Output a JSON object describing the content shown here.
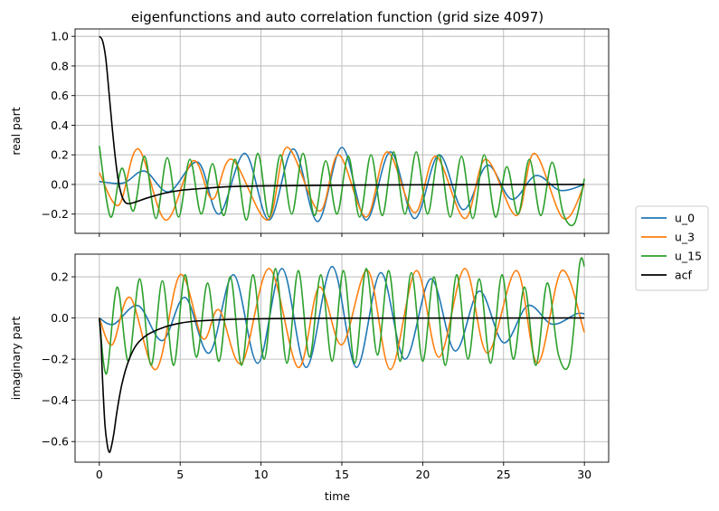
{
  "chart_data": {
    "type": "line",
    "title": "eigenfunctions and auto correlation function (grid size 4097)",
    "xlabel": "time",
    "grid": true,
    "legend_placement": "right",
    "x_ticks": [
      "0",
      "5",
      "10",
      "15",
      "20",
      "25",
      "30"
    ],
    "xlim": [
      -1.5,
      31.5
    ],
    "legend": [
      {
        "name": "u_0",
        "color": "#1f77b4"
      },
      {
        "name": "u_3",
        "color": "#ff7f0e"
      },
      {
        "name": "u_15",
        "color": "#2ca02c"
      },
      {
        "name": "acf",
        "color": "#000000"
      }
    ],
    "panels": [
      {
        "ylabel": "real part",
        "ylim": [
          -0.33,
          1.05
        ],
        "y_ticks": [
          "1.0",
          "0.8",
          "0.6",
          "0.4",
          "0.2",
          "0.0",
          "−0.2"
        ],
        "y_tick_values": [
          1.0,
          0.8,
          0.6,
          0.4,
          0.2,
          0.0,
          -0.2
        ],
        "series": [
          {
            "name": "u_0",
            "color": "#1f77b4",
            "amplitude": 0.245,
            "period": 3.04,
            "note_x": [
              0,
              30
            ],
            "points": [
              [
                0,
                0.02
              ],
              [
                1.5,
                0.01
              ],
              [
                2.8,
                0.09
              ],
              [
                4.3,
                -0.05
              ],
              [
                6.1,
                0.15
              ],
              [
                7.4,
                -0.2
              ],
              [
                9.0,
                0.21
              ],
              [
                10.5,
                -0.24
              ],
              [
                12.0,
                0.24
              ],
              [
                13.5,
                -0.25
              ],
              [
                15.0,
                0.25
              ],
              [
                16.5,
                -0.24
              ],
              [
                18.0,
                0.22
              ],
              [
                19.5,
                -0.23
              ],
              [
                21.0,
                0.2
              ],
              [
                22.5,
                -0.17
              ],
              [
                24.0,
                0.13
              ],
              [
                25.5,
                -0.1
              ],
              [
                27.0,
                0.06
              ],
              [
                28.5,
                -0.04
              ],
              [
                30.0,
                0.0
              ]
            ]
          },
          {
            "name": "u_3",
            "color": "#ff7f0e",
            "points": [
              [
                0,
                0.08
              ],
              [
                1.2,
                -0.14
              ],
              [
                2.4,
                0.24
              ],
              [
                4.1,
                -0.24
              ],
              [
                5.8,
                0.16
              ],
              [
                7.0,
                -0.1
              ],
              [
                8.2,
                0.17
              ],
              [
                10.4,
                -0.24
              ],
              [
                11.6,
                0.25
              ],
              [
                13.6,
                -0.18
              ],
              [
                14.8,
                0.2
              ],
              [
                16.5,
                -0.22
              ],
              [
                17.8,
                0.22
              ],
              [
                19.5,
                -0.19
              ],
              [
                20.8,
                0.19
              ],
              [
                22.6,
                -0.23
              ],
              [
                23.9,
                0.17
              ],
              [
                25.8,
                -0.21
              ],
              [
                26.9,
                0.21
              ],
              [
                28.7,
                -0.23
              ],
              [
                30.0,
                0.0
              ]
            ]
          },
          {
            "name": "u_15",
            "color": "#2ca02c",
            "points": [
              [
                0,
                0.26
              ],
              [
                0.7,
                -0.22
              ],
              [
                1.4,
                0.11
              ],
              [
                2.1,
                -0.18
              ],
              [
                2.8,
                0.19
              ],
              [
                3.5,
                -0.23
              ],
              [
                4.2,
                0.18
              ],
              [
                4.9,
                -0.22
              ],
              [
                5.6,
                0.17
              ],
              [
                6.3,
                -0.2
              ],
              [
                7.0,
                0.14
              ],
              [
                7.7,
                -0.21
              ],
              [
                8.4,
                0.17
              ],
              [
                9.1,
                -0.24
              ],
              [
                9.8,
                0.21
              ],
              [
                10.5,
                -0.22
              ],
              [
                11.2,
                0.2
              ],
              [
                11.9,
                -0.2
              ],
              [
                12.6,
                0.21
              ],
              [
                13.3,
                -0.21
              ],
              [
                14.0,
                0.16
              ],
              [
                14.7,
                -0.2
              ],
              [
                15.4,
                0.19
              ],
              [
                16.1,
                -0.22
              ],
              [
                16.8,
                0.2
              ],
              [
                17.5,
                -0.21
              ],
              [
                18.2,
                0.22
              ],
              [
                18.9,
                -0.2
              ],
              [
                19.6,
                0.22
              ],
              [
                20.3,
                -0.2
              ],
              [
                21.0,
                0.2
              ],
              [
                21.7,
                -0.22
              ],
              [
                22.4,
                0.19
              ],
              [
                23.1,
                -0.23
              ],
              [
                23.8,
                0.2
              ],
              [
                24.5,
                -0.22
              ],
              [
                25.2,
                0.12
              ],
              [
                25.9,
                -0.2
              ],
              [
                26.6,
                0.17
              ],
              [
                27.3,
                -0.21
              ],
              [
                28.0,
                0.15
              ],
              [
                28.7,
                -0.2
              ],
              [
                29.4,
                -0.26
              ],
              [
                30.0,
                0.04
              ]
            ]
          },
          {
            "name": "acf",
            "color": "#000000",
            "points": [
              [
                0,
                1.0
              ],
              [
                0.2,
                0.97
              ],
              [
                0.4,
                0.85
              ],
              [
                0.6,
                0.62
              ],
              [
                0.8,
                0.38
              ],
              [
                1.0,
                0.17
              ],
              [
                1.2,
                0.01
              ],
              [
                1.4,
                -0.08
              ],
              [
                1.6,
                -0.12
              ],
              [
                1.8,
                -0.13
              ],
              [
                2.2,
                -0.12
              ],
              [
                3.0,
                -0.09
              ],
              [
                4.0,
                -0.06
              ],
              [
                5.0,
                -0.04
              ],
              [
                6.0,
                -0.03
              ],
              [
                8.0,
                -0.015
              ],
              [
                10.0,
                -0.01
              ],
              [
                15.0,
                -0.005
              ],
              [
                20.0,
                -0.002
              ],
              [
                30.0,
                0.0
              ]
            ]
          }
        ]
      },
      {
        "ylabel": "imaginary part",
        "ylim": [
          -0.7,
          0.31
        ],
        "y_ticks": [
          "0.2",
          "0.0",
          "−0.2",
          "−0.4",
          "−0.6"
        ],
        "y_tick_values": [
          0.2,
          0.0,
          -0.2,
          -0.4,
          -0.6
        ],
        "series": [
          {
            "name": "u_0",
            "color": "#1f77b4",
            "points": [
              [
                0,
                0.0
              ],
              [
                0.9,
                -0.03
              ],
              [
                2.4,
                0.06
              ],
              [
                3.9,
                -0.11
              ],
              [
                5.3,
                0.1
              ],
              [
                6.8,
                -0.17
              ],
              [
                8.3,
                0.21
              ],
              [
                9.8,
                -0.22
              ],
              [
                11.3,
                0.24
              ],
              [
                12.8,
                -0.24
              ],
              [
                14.4,
                0.25
              ],
              [
                15.9,
                -0.24
              ],
              [
                17.4,
                0.22
              ],
              [
                18.9,
                -0.2
              ],
              [
                20.5,
                0.19
              ],
              [
                22.0,
                -0.16
              ],
              [
                23.5,
                0.13
              ],
              [
                25.0,
                -0.12
              ],
              [
                26.5,
                0.06
              ],
              [
                28.0,
                -0.03
              ],
              [
                29.5,
                0.02
              ],
              [
                30.0,
                0.02
              ]
            ]
          },
          {
            "name": "u_3",
            "color": "#ff7f0e",
            "points": [
              [
                0,
                0.0
              ],
              [
                0.8,
                -0.13
              ],
              [
                1.9,
                0.1
              ],
              [
                3.5,
                -0.25
              ],
              [
                5.0,
                0.21
              ],
              [
                6.4,
                -0.1
              ],
              [
                7.4,
                0.04
              ],
              [
                8.8,
                -0.22
              ],
              [
                10.5,
                0.24
              ],
              [
                12.3,
                -0.24
              ],
              [
                13.6,
                0.15
              ],
              [
                15.0,
                -0.13
              ],
              [
                16.6,
                0.23
              ],
              [
                18.0,
                -0.25
              ],
              [
                19.6,
                0.23
              ],
              [
                21.0,
                -0.19
              ],
              [
                22.6,
                0.24
              ],
              [
                24.0,
                -0.17
              ],
              [
                25.8,
                0.23
              ],
              [
                27.1,
                -0.22
              ],
              [
                28.6,
                0.23
              ],
              [
                30.0,
                -0.07
              ]
            ]
          },
          {
            "name": "u_15",
            "color": "#2ca02c",
            "points": [
              [
                0,
                0.0
              ],
              [
                0.45,
                -0.27
              ],
              [
                1.1,
                0.15
              ],
              [
                1.8,
                -0.21
              ],
              [
                2.5,
                0.19
              ],
              [
                3.2,
                -0.23
              ],
              [
                3.9,
                0.18
              ],
              [
                4.6,
                -0.23
              ],
              [
                5.3,
                0.21
              ],
              [
                6.0,
                -0.19
              ],
              [
                6.7,
                0.17
              ],
              [
                7.4,
                -0.21
              ],
              [
                8.1,
                0.2
              ],
              [
                8.8,
                -0.23
              ],
              [
                9.5,
                0.21
              ],
              [
                10.2,
                -0.2
              ],
              [
                10.9,
                0.24
              ],
              [
                11.6,
                -0.22
              ],
              [
                12.3,
                0.23
              ],
              [
                13.0,
                -0.19
              ],
              [
                13.7,
                0.21
              ],
              [
                14.4,
                -0.21
              ],
              [
                15.1,
                0.23
              ],
              [
                15.8,
                -0.22
              ],
              [
                16.5,
                0.24
              ],
              [
                17.2,
                -0.18
              ],
              [
                17.9,
                0.23
              ],
              [
                18.6,
                -0.21
              ],
              [
                19.3,
                0.22
              ],
              [
                20.0,
                -0.21
              ],
              [
                20.7,
                0.2
              ],
              [
                21.4,
                -0.23
              ],
              [
                22.1,
                0.21
              ],
              [
                22.8,
                -0.2
              ],
              [
                23.5,
                0.19
              ],
              [
                24.2,
                -0.22
              ],
              [
                24.9,
                0.21
              ],
              [
                25.6,
                -0.2
              ],
              [
                26.3,
                0.15
              ],
              [
                27.0,
                -0.23
              ],
              [
                27.7,
                0.17
              ],
              [
                28.4,
                -0.18
              ],
              [
                29.1,
                -0.21
              ],
              [
                29.7,
                0.26
              ],
              [
                30.0,
                0.25
              ]
            ]
          },
          {
            "name": "acf",
            "color": "#000000",
            "points": [
              [
                0,
                0.0
              ],
              [
                0.1,
                -0.1
              ],
              [
                0.2,
                -0.3
              ],
              [
                0.35,
                -0.52
              ],
              [
                0.5,
                -0.62
              ],
              [
                0.6,
                -0.65
              ],
              [
                0.7,
                -0.64
              ],
              [
                0.9,
                -0.56
              ],
              [
                1.1,
                -0.45
              ],
              [
                1.4,
                -0.32
              ],
              [
                1.8,
                -0.21
              ],
              [
                2.3,
                -0.13
              ],
              [
                3.0,
                -0.08
              ],
              [
                4.0,
                -0.045
              ],
              [
                5.0,
                -0.025
              ],
              [
                6.0,
                -0.015
              ],
              [
                8.0,
                -0.007
              ],
              [
                10.0,
                -0.004
              ],
              [
                15.0,
                -0.001
              ],
              [
                30.0,
                0.0
              ]
            ]
          }
        ]
      }
    ]
  }
}
